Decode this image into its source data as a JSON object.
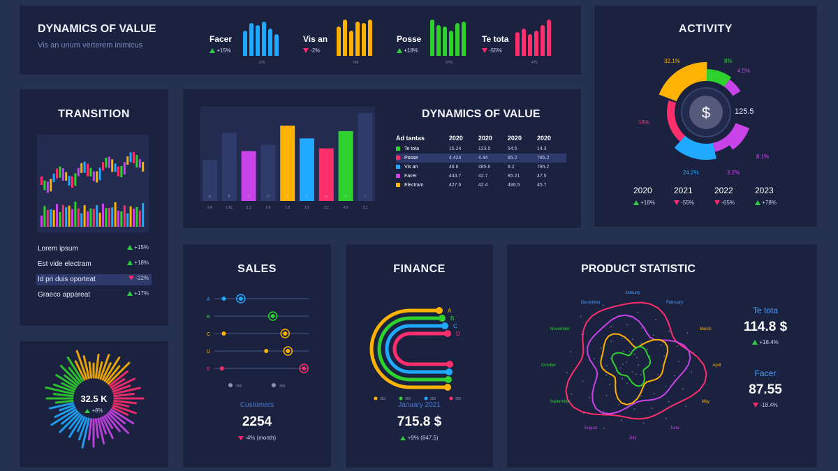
{
  "colors": {
    "blue": "#1fa9ff",
    "orange": "#ffb300",
    "green": "#2ed12e",
    "pink": "#ff2e6d",
    "purple": "#c844e8",
    "slate": "#2f3c6b",
    "up": "#2ecc40",
    "down": "#ff2a6d"
  },
  "top_panel": {
    "title": "DYNAMICS OF VALUE",
    "subtitle": "Vis an unum verterem inimicus",
    "metrics": [
      {
        "label": "Facer",
        "change": "+15%",
        "dir": "up",
        "color": "blue",
        "caption": "275",
        "bars": [
          0.7,
          0.9,
          0.85,
          0.95,
          0.75,
          0.6
        ]
      },
      {
        "label": "Vis an",
        "change": "-2%",
        "dir": "down",
        "color": "orange",
        "caption": "758",
        "bars": [
          0.8,
          1.0,
          0.7,
          0.95,
          0.9,
          1.0
        ]
      },
      {
        "label": "Posse",
        "change": "+18%",
        "dir": "up",
        "color": "green",
        "caption": "67%",
        "bars": [
          1.0,
          0.85,
          0.8,
          0.7,
          0.9,
          0.95
        ]
      },
      {
        "label": "Te tota",
        "change": "-55%",
        "dir": "down",
        "color": "pink",
        "caption": "475",
        "bars": [
          0.65,
          0.75,
          0.6,
          0.7,
          0.85,
          1.0
        ]
      }
    ]
  },
  "activity": {
    "title": "ACTIVITY",
    "center_value": "125.5",
    "segments": [
      {
        "label": "32.1%",
        "color": "orange",
        "value": 32.1
      },
      {
        "label": "8%",
        "color": "green",
        "value": 8
      },
      {
        "label": "4.5%",
        "color": "purple",
        "value": 4.5
      },
      {
        "label": "8.1%",
        "color": "purple",
        "value": 8.1
      },
      {
        "label": "3.2%",
        "color": "purple",
        "value": 3.2
      },
      {
        "label": "24.2%",
        "color": "blue",
        "value": 24.2
      },
      {
        "label": "16%",
        "color": "pink",
        "value": 16
      }
    ],
    "years": [
      {
        "year": "2020",
        "change": "+18%",
        "dir": "up"
      },
      {
        "year": "2021",
        "change": "-55%",
        "dir": "down"
      },
      {
        "year": "2022",
        "change": "-65%",
        "dir": "down"
      },
      {
        "year": "2023",
        "change": "+78%",
        "dir": "up"
      }
    ]
  },
  "transition": {
    "title": "TRANSITION",
    "rows": [
      {
        "label": "Lorem ipsum",
        "change": "+15%",
        "dir": "up"
      },
      {
        "label": "Est vide electram",
        "change": "+18%",
        "dir": "up"
      },
      {
        "label": "Id pri duis oporteat",
        "change": "-22%",
        "dir": "down"
      },
      {
        "label": "Graeco appareat",
        "change": "+17%",
        "dir": "up"
      }
    ]
  },
  "dynamics": {
    "title": "DYNAMICS OF VALUE",
    "headers": [
      "Ad tantas",
      "2020",
      "2020",
      "2020",
      "2020"
    ],
    "rows": [
      {
        "name": "Te tota",
        "color": "green",
        "values": [
          "15.24",
          "123.5",
          "54.5",
          "14.3"
        ]
      },
      {
        "name": "Posse",
        "color": "pink",
        "values": [
          "4.424",
          "4.44",
          "85.2",
          "785.2"
        ]
      },
      {
        "name": "Vis an",
        "color": "blue",
        "values": [
          "48.6",
          "485.6",
          "8.2",
          "785.2"
        ]
      },
      {
        "name": "Facer",
        "color": "purple",
        "values": [
          "444.7",
          "42.7",
          "85.21",
          "47.5"
        ]
      },
      {
        "name": "Electram",
        "color": "orange",
        "values": [
          "427.6",
          "42.4",
          "486.5",
          "45.7"
        ]
      }
    ]
  },
  "chart_data": {
    "type": "bar",
    "categories": [
      "A",
      "B",
      "C",
      "D",
      "E",
      "F",
      "G",
      "H",
      "I"
    ],
    "values": [
      45,
      75,
      55,
      62,
      83,
      69,
      58,
      77,
      97
    ],
    "colors": [
      "slate",
      "slate",
      "purple",
      "slate",
      "orange",
      "blue",
      "pink",
      "green",
      "slate"
    ],
    "value_labels": [
      "2.4",
      "1.61",
      "3.1",
      "2.5",
      "1.6",
      "3.1",
      "2.1",
      "4.3",
      "3.1"
    ],
    "ylim": [
      0,
      100
    ],
    "grid": false
  },
  "sales": {
    "title": "SALES",
    "rows": [
      {
        "label": "A",
        "color": "blue",
        "dots": [
          0.1,
          0.28
        ]
      },
      {
        "label": "B",
        "color": "green",
        "dots": [
          0.62
        ]
      },
      {
        "label": "C",
        "color": "orange",
        "dots": [
          0.1,
          0.75
        ]
      },
      {
        "label": "D",
        "color": "orange",
        "dots": [
          0.55,
          0.78
        ]
      },
      {
        "label": "E",
        "color": "pink",
        "dots": [
          0.08,
          0.95
        ]
      }
    ],
    "legend": [
      "350",
      "350"
    ],
    "customers_label": "Customers",
    "customers_value": "2254",
    "customers_change": "-4% (month)"
  },
  "finance": {
    "title": "FINANCE",
    "arcs": [
      {
        "label": "A",
        "color": "orange"
      },
      {
        "label": "B",
        "color": "green"
      },
      {
        "label": "C",
        "color": "blue"
      },
      {
        "label": "D",
        "color": "pink"
      }
    ],
    "legend": [
      "350",
      "350",
      "350",
      "350"
    ],
    "period": "January 2021",
    "value": "715.8 $",
    "change": "+9% (847.5)"
  },
  "donut_small": {
    "value": "32.5 K",
    "change": "+8%"
  },
  "product": {
    "title": "PRODUCT STATISTIC",
    "months": [
      "January",
      "February",
      "March",
      "April",
      "May",
      "June",
      "July",
      "August",
      "September",
      "October",
      "November",
      "December"
    ],
    "stats": [
      {
        "label": "Te tota",
        "value": "114.8 $",
        "change": "+18.4%",
        "dir": "up"
      },
      {
        "label": "Facer",
        "value": "87.55",
        "change": "-18.4%",
        "dir": "down"
      }
    ]
  }
}
